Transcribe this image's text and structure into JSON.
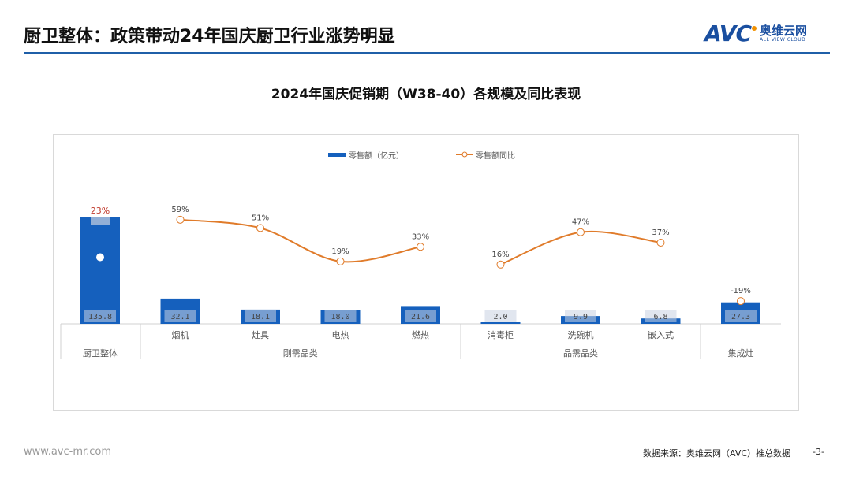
{
  "header": {
    "title": "厨卫整体：政策带动24年国庆厨卫行业涨势明显",
    "logo_text": "AVC",
    "logo_cn": "奥维云网",
    "logo_en": "ALL VIEW CLOUD",
    "accent_color": "#1f5fa8"
  },
  "chart_data": {
    "type": "bar+line",
    "title": "2024年国庆促销期（W38-40）各规模及同比表现",
    "legend_placement": "top",
    "categories": [
      "厨卫整体",
      "烟机",
      "灶具",
      "电热",
      "燃热",
      "消毒柜",
      "洗碗机",
      "嵌入式",
      "集成灶"
    ],
    "groups": [
      {
        "label": "",
        "members": [
          "厨卫整体"
        ]
      },
      {
        "label": "刚需品类",
        "members": [
          "烟机",
          "灶具",
          "电热",
          "燃热"
        ]
      },
      {
        "label": "品需品类",
        "members": [
          "消毒柜",
          "洗碗机",
          "嵌入式"
        ]
      },
      {
        "label": "",
        "members": [
          "集成灶"
        ]
      }
    ],
    "group_bottom_label_first": "厨卫整体",
    "group_bottom_label_last": "集成灶",
    "series": [
      {
        "name": "零售额（亿元）",
        "kind": "bar",
        "color": "#1560bd",
        "values": [
          135.8,
          32.1,
          18.1,
          18.0,
          21.6,
          2.0,
          9.9,
          6.8,
          27.3
        ],
        "labels": [
          "135.8",
          "32.1",
          "18.1",
          "18.0",
          "21.6",
          "2.0",
          "9.9",
          "6.8",
          "27.3"
        ]
      },
      {
        "name": "零售额同比",
        "kind": "line",
        "color": "#e07b2a",
        "unit": "%",
        "values": [
          23,
          59,
          51,
          19,
          33,
          16,
          47,
          37,
          -19
        ],
        "labels": [
          "23%",
          "59%",
          "51%",
          "19%",
          "33%",
          "16%",
          "47%",
          "37%",
          "-19%"
        ],
        "highlight_color": "#c0392b"
      }
    ],
    "grid": false
  },
  "footer": {
    "url": "www.avc-mr.com",
    "source": "数据来源：奥维云网（AVC）推总数据",
    "page": "-3-"
  }
}
